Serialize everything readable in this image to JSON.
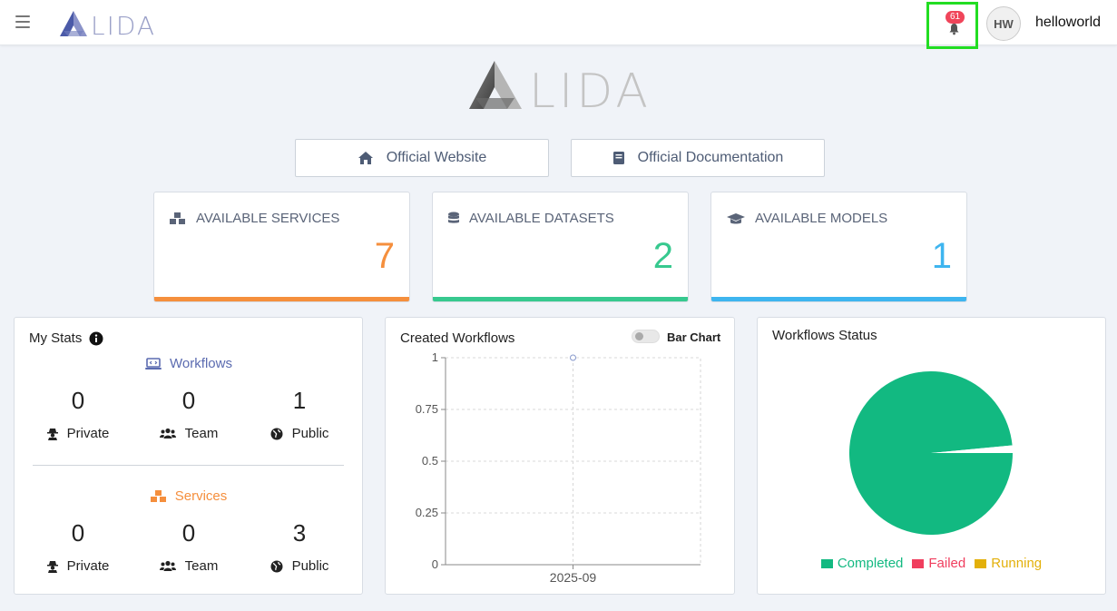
{
  "header": {
    "logo_text": "LIDA",
    "notification_count": "61",
    "avatar_initials": "HW",
    "username": "helloworld"
  },
  "hero": {
    "logo_text": "LIDA"
  },
  "links": {
    "website": "Official Website",
    "docs": "Official Documentation"
  },
  "cards": [
    {
      "label": "AVAILABLE SERVICES",
      "value": "7",
      "color": "#f58f3d"
    },
    {
      "label": "AVAILABLE DATASETS",
      "value": "2",
      "color": "#37c98f"
    },
    {
      "label": "AVAILABLE MODELS",
      "value": "1",
      "color": "#3eb5ef"
    }
  ],
  "my_stats": {
    "title": "My Stats",
    "workflows": {
      "heading": "Workflows",
      "private": "0",
      "team": "0",
      "public": "1"
    },
    "services": {
      "heading": "Services",
      "private": "0",
      "team": "0",
      "public": "3"
    },
    "labels": {
      "private": "Private",
      "team": "Team",
      "public": "Public"
    }
  },
  "created_workflows": {
    "title": "Created Workflows",
    "toggle_label": "Bar Chart"
  },
  "workflows_status": {
    "title": "Workflows Status",
    "legend": [
      {
        "label": "Completed",
        "color": "#12b981"
      },
      {
        "label": "Failed",
        "color": "#f03e5e"
      },
      {
        "label": "Running",
        "color": "#e3b00a"
      }
    ]
  },
  "chart_data": [
    {
      "type": "line",
      "title": "Created Workflows",
      "x": [
        "2025-09"
      ],
      "series": [
        {
          "values": [
            1
          ]
        }
      ],
      "ylim": [
        0,
        1
      ],
      "yticks": [
        "0",
        "0.25",
        "0.5",
        "0.75",
        "1"
      ],
      "grid": true
    },
    {
      "type": "pie",
      "title": "Workflows Status",
      "categories": [
        "Completed",
        "Failed",
        "Running"
      ],
      "values": [
        98.5,
        1.5,
        0
      ],
      "colors": [
        "#12b981",
        "#f03e5e",
        "#e3b00a"
      ],
      "legend": "bottom"
    }
  ]
}
